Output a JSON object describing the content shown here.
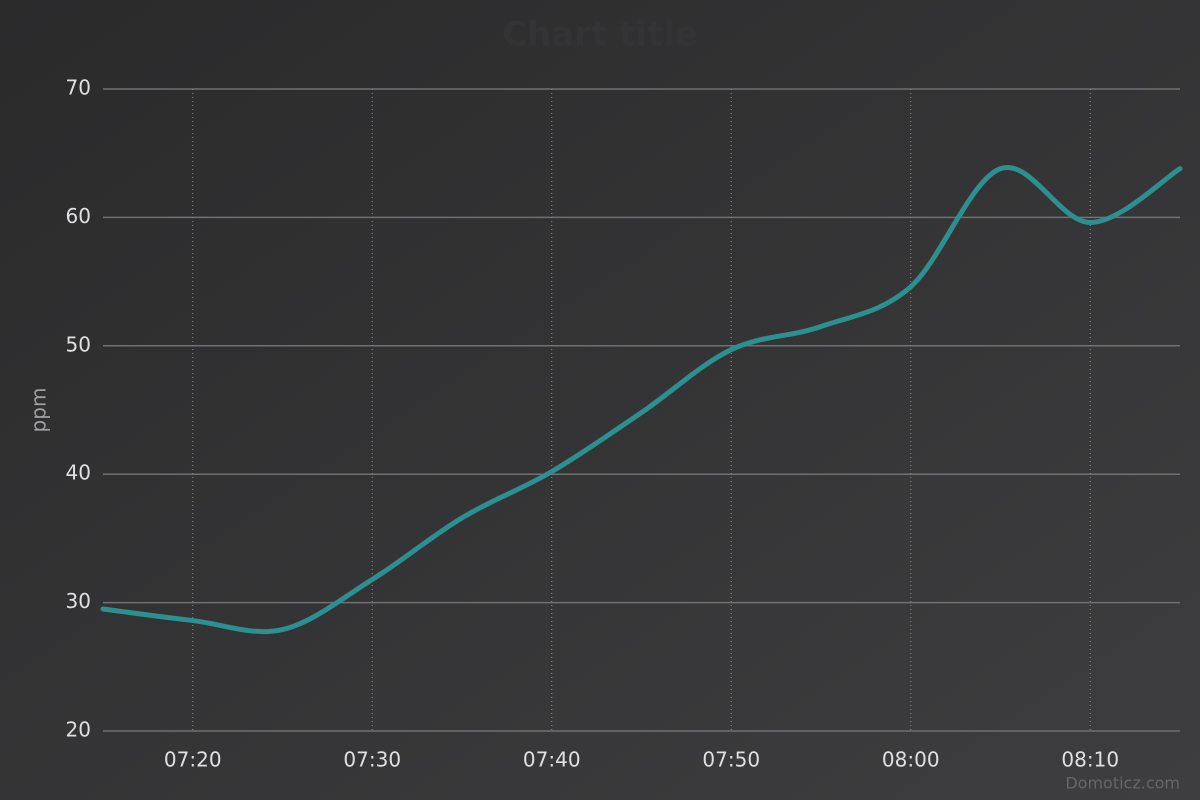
{
  "chart_data": {
    "type": "line",
    "title": "Chart title",
    "y_label": "ppm",
    "credits": "Domoticz.com",
    "x": [
      "07:15",
      "07:20",
      "07:25",
      "07:30",
      "07:35",
      "07:40",
      "07:45",
      "07:50",
      "07:55",
      "08:00",
      "08:05",
      "08:10",
      "08:15"
    ],
    "series": [
      {
        "name": "ppm",
        "color": "#2b908f",
        "values": [
          29.5,
          28.6,
          27.9,
          31.8,
          36.6,
          40.2,
          44.8,
          49.7,
          51.5,
          54.6,
          63.8,
          59.6,
          63.8
        ]
      }
    ],
    "xlim": [
      "07:15",
      "08:15"
    ],
    "xticks": [
      "07:20",
      "07:30",
      "07:40",
      "07:50",
      "08:00",
      "08:10"
    ],
    "ylim": [
      20,
      70
    ],
    "yticks": [
      20,
      30,
      40,
      50,
      60,
      70
    ],
    "grid": true
  }
}
